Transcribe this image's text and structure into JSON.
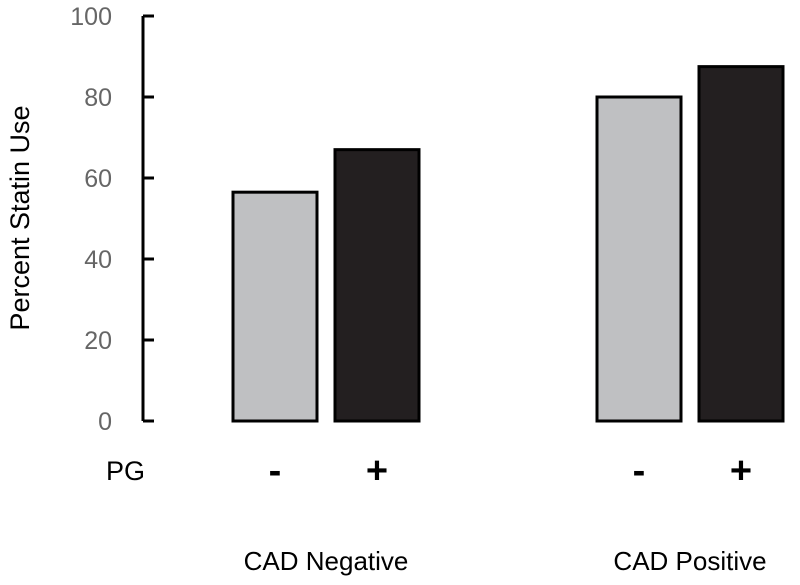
{
  "chart_data": {
    "type": "bar",
    "title": "",
    "ylabel": "Percent Statin Use",
    "xlabel": "",
    "ylim": [
      0,
      100
    ],
    "yticks": [
      0,
      20,
      40,
      60,
      80,
      100
    ],
    "subgroup_row_label": "PG",
    "categories": [
      "CAD Negative",
      "CAD Positive"
    ],
    "series": [
      {
        "name": "PG -",
        "sign": "-",
        "color": "#bfc0c2",
        "values": [
          56.5,
          80
        ]
      },
      {
        "name": "PG +",
        "sign": "+",
        "color": "#231f20",
        "values": [
          67,
          87.5
        ]
      }
    ],
    "grid": false,
    "legend": "none"
  }
}
